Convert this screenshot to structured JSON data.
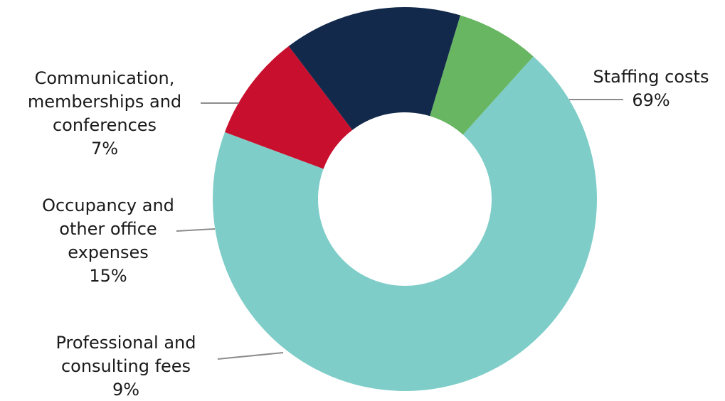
{
  "chart_data": {
    "type": "pie",
    "variant": "donut",
    "start_angle_deg": -48,
    "direction": "clockwise",
    "slices": [
      {
        "label": [
          "Staffing costs"
        ],
        "percent_label": "69%",
        "value": 69,
        "color": "#7ecdc8"
      },
      {
        "label": [
          "Professional and",
          "consulting fees"
        ],
        "percent_label": "9%",
        "value": 9,
        "color": "#c8102e"
      },
      {
        "label": [
          "Occupancy and",
          "other office",
          "expenses"
        ],
        "percent_label": "15%",
        "value": 15,
        "color": "#13294b"
      },
      {
        "label": [
          "Communication,",
          "memberships and",
          "conferences"
        ],
        "percent_label": "7%",
        "value": 7,
        "color": "#68b562"
      }
    ],
    "legend": "none"
  }
}
